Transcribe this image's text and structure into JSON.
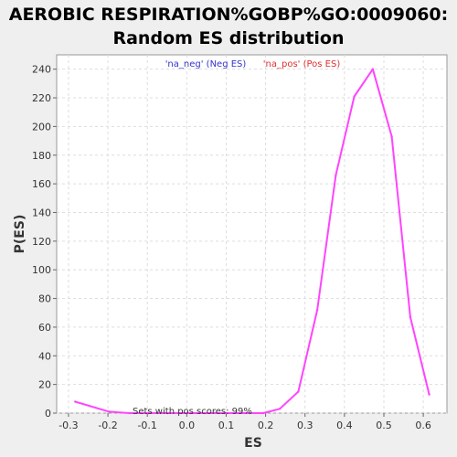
{
  "chart_data": {
    "type": "line",
    "title": "AEROBIC RESPIRATION%GOBP%GO:0009060:",
    "subtitle": "Random ES distribution",
    "xlabel": "ES",
    "ylabel": "P(ES)",
    "xlim": [
      -0.33,
      0.66
    ],
    "ylim": [
      0,
      250
    ],
    "xticks": [
      -0.3,
      -0.2,
      -0.1,
      0.0,
      0.1,
      0.2,
      0.3,
      0.4,
      0.5,
      0.6
    ],
    "xtick_labels": [
      "-0.3",
      "-0.2",
      "-0.1",
      "0.0",
      "0.1",
      "0.2",
      "0.3",
      "0.4",
      "0.5",
      "0.6"
    ],
    "yticks": [
      0,
      20,
      40,
      60,
      80,
      100,
      120,
      140,
      160,
      180,
      200,
      220,
      240
    ],
    "ytick_labels": [
      "0",
      "20",
      "40",
      "60",
      "80",
      "100",
      "120",
      "140",
      "160",
      "180",
      "200",
      "220",
      "240"
    ],
    "grid": true,
    "legend": [
      {
        "label": "'na_neg' (Neg ES)",
        "color": "#3333cc"
      },
      {
        "label": "'na_pos' (Pos ES)",
        "color": "#e03030"
      }
    ],
    "series": [
      {
        "color": "#ff44ff",
        "x": [
          -0.283,
          -0.197,
          -0.145,
          -0.097,
          -0.048,
          0.001,
          0.049,
          0.097,
          0.146,
          0.194,
          0.236,
          0.283,
          0.331,
          0.378,
          0.425,
          0.472,
          0.52,
          0.567,
          0.615
        ],
        "y": [
          8,
          1,
          0,
          0,
          0,
          0,
          0,
          0,
          0,
          0,
          3,
          15,
          72,
          166,
          221,
          240,
          193,
          67,
          13
        ]
      }
    ],
    "annotation": "Sets with pos scores: 99%"
  }
}
